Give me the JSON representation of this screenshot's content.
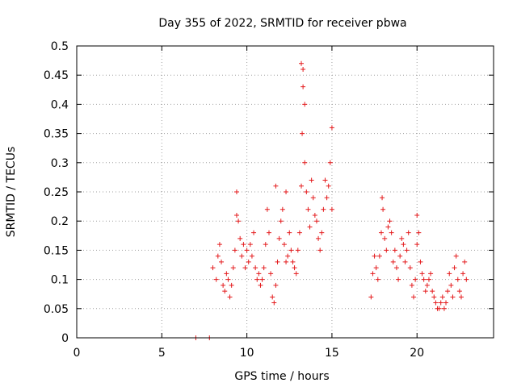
{
  "chart_data": {
    "type": "scatter",
    "title": "Day 355 of 2022, SRMTID for receiver pbwa",
    "xlabel": "GPS time / hours",
    "ylabel": "SRMTID / TECUs",
    "xlim": [
      0,
      24.5
    ],
    "ylim": [
      0,
      0.5
    ],
    "xticks": [
      0,
      5,
      10,
      15,
      20
    ],
    "xtick_labels": [
      "0",
      "5",
      "10",
      "15",
      "20"
    ],
    "yticks": [
      0,
      0.05,
      0.1,
      0.15,
      0.2,
      0.25,
      0.3,
      0.35,
      0.4,
      0.45,
      0.5
    ],
    "ytick_labels": [
      "0",
      "0.05",
      "0.1",
      "0.15",
      "0.2",
      "0.25",
      "0.3",
      "0.35",
      "0.4",
      "0.45",
      "0.5"
    ],
    "grid": true,
    "marker": "plus",
    "color": "#e41a1c",
    "series": [
      {
        "name": "SRMTID",
        "x": [
          7.0,
          7.8,
          8.0,
          8.2,
          8.3,
          8.4,
          8.5,
          8.6,
          8.7,
          8.8,
          8.9,
          9.0,
          9.1,
          9.2,
          9.3,
          9.4,
          9.5,
          9.6,
          9.7,
          9.8,
          9.9,
          10.0,
          10.1,
          10.2,
          10.3,
          10.4,
          10.5,
          10.6,
          10.7,
          10.8,
          10.9,
          11.0,
          11.1,
          11.2,
          11.3,
          11.4,
          11.5,
          11.6,
          11.7,
          11.8,
          11.9,
          12.0,
          12.1,
          12.2,
          12.3,
          12.4,
          12.5,
          12.6,
          12.7,
          12.8,
          12.9,
          13.0,
          13.1,
          13.2,
          13.3,
          13.4,
          13.5,
          13.6,
          13.7,
          13.8,
          13.9,
          14.0,
          14.1,
          14.2,
          14.3,
          14.4,
          14.5,
          14.6,
          14.7,
          14.8,
          14.9,
          15.0,
          17.3,
          17.4,
          17.5,
          17.6,
          17.7,
          17.8,
          17.9,
          18.0,
          18.1,
          18.2,
          18.3,
          18.4,
          18.5,
          18.6,
          18.7,
          18.8,
          18.9,
          19.0,
          19.1,
          19.2,
          19.3,
          19.4,
          19.5,
          19.6,
          19.7,
          19.8,
          19.9,
          20.0,
          20.1,
          20.2,
          20.3,
          20.4,
          20.5,
          20.6,
          20.7,
          20.8,
          20.9,
          21.0,
          21.1,
          21.2,
          21.3,
          21.4,
          21.5,
          21.6,
          21.7,
          21.8,
          21.9,
          22.0,
          22.1,
          22.2,
          22.3,
          22.4,
          22.5,
          22.6,
          22.7,
          22.8,
          22.9,
          13.2,
          13.3,
          13.4,
          13.25,
          15.0,
          9.4,
          11.7,
          12.3,
          17.95,
          20.0
        ],
        "y": [
          0.0,
          0.0,
          0.12,
          0.1,
          0.14,
          0.16,
          0.13,
          0.09,
          0.08,
          0.11,
          0.1,
          0.07,
          0.09,
          0.12,
          0.15,
          0.21,
          0.2,
          0.17,
          0.14,
          0.16,
          0.12,
          0.15,
          0.13,
          0.16,
          0.14,
          0.18,
          0.12,
          0.1,
          0.11,
          0.09,
          0.1,
          0.12,
          0.16,
          0.22,
          0.18,
          0.11,
          0.07,
          0.06,
          0.09,
          0.13,
          0.17,
          0.2,
          0.22,
          0.16,
          0.13,
          0.14,
          0.18,
          0.15,
          0.13,
          0.12,
          0.11,
          0.15,
          0.18,
          0.26,
          0.43,
          0.3,
          0.25,
          0.22,
          0.19,
          0.27,
          0.24,
          0.21,
          0.2,
          0.17,
          0.15,
          0.18,
          0.22,
          0.27,
          0.24,
          0.26,
          0.3,
          0.22,
          0.07,
          0.11,
          0.14,
          0.12,
          0.1,
          0.14,
          0.18,
          0.22,
          0.17,
          0.15,
          0.19,
          0.2,
          0.18,
          0.13,
          0.15,
          0.12,
          0.1,
          0.14,
          0.17,
          0.16,
          0.13,
          0.15,
          0.18,
          0.12,
          0.09,
          0.07,
          0.1,
          0.16,
          0.18,
          0.13,
          0.11,
          0.1,
          0.08,
          0.09,
          0.1,
          0.11,
          0.08,
          0.07,
          0.06,
          0.05,
          0.05,
          0.06,
          0.07,
          0.05,
          0.06,
          0.08,
          0.11,
          0.09,
          0.07,
          0.12,
          0.14,
          0.1,
          0.08,
          0.07,
          0.11,
          0.13,
          0.1,
          0.47,
          0.46,
          0.4,
          0.35,
          0.36,
          0.25,
          0.26,
          0.25,
          0.24,
          0.21
        ]
      }
    ]
  }
}
